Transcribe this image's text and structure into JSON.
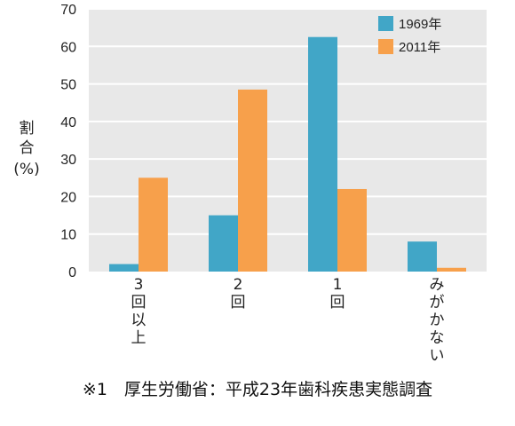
{
  "chart_data": {
    "type": "bar",
    "categories": [
      "3回以上",
      "2回",
      "1回",
      "みがかない"
    ],
    "series": [
      {
        "name": "1969年",
        "values": [
          2,
          15,
          62.5,
          8
        ],
        "color": "#41a6c7"
      },
      {
        "name": "2011年",
        "values": [
          25,
          48.5,
          22,
          1
        ],
        "color": "#f7a04b"
      }
    ],
    "ylabel": "割合",
    "ylabel_unit": "(%)",
    "ylim": [
      0,
      70
    ],
    "yticks": [
      0,
      10,
      20,
      30,
      40,
      50,
      60,
      70
    ],
    "grid": true,
    "legend_position": "top-right",
    "background": "#e8e8e8"
  },
  "footnote": "※1　厚生労働省：平成23年歯科疾患実態調査"
}
